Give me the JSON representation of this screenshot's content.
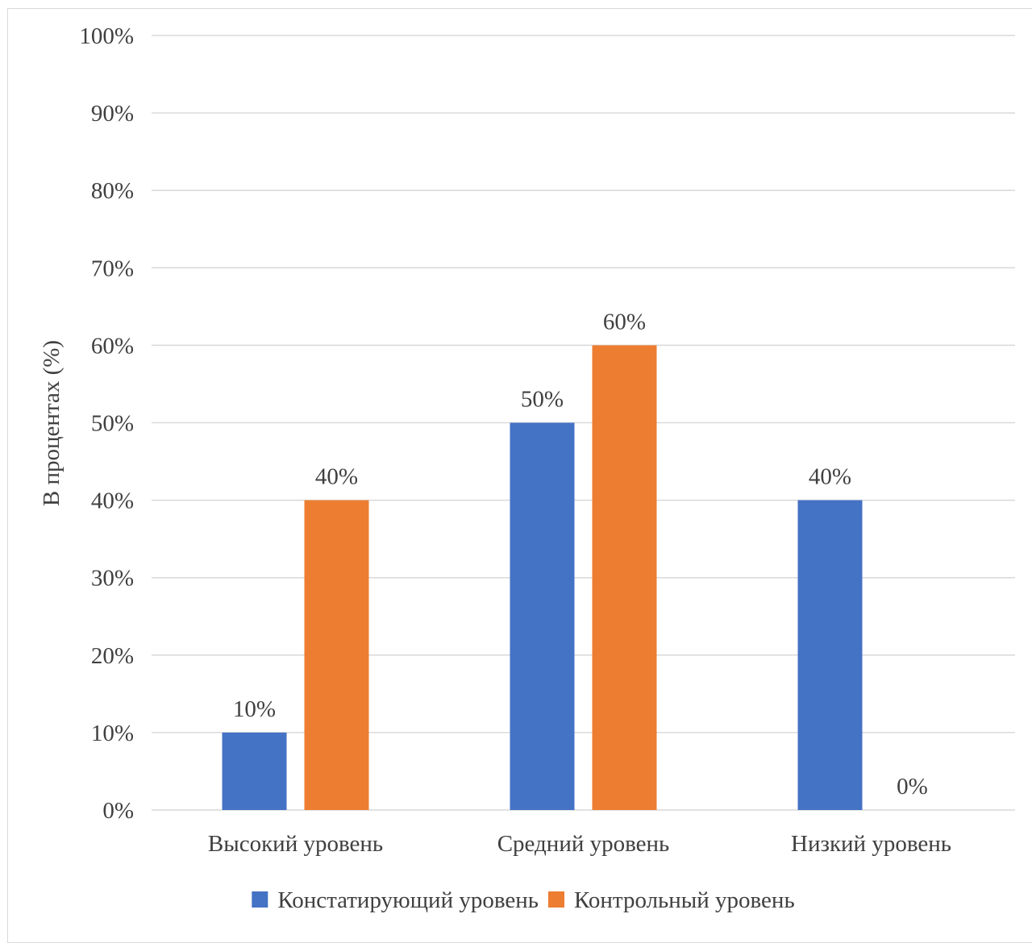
{
  "chart_data": {
    "type": "bar",
    "ylabel": "В процентах (%)",
    "ylim": [
      0,
      100
    ],
    "yticks": [
      "0%",
      "10%",
      "20%",
      "30%",
      "40%",
      "50%",
      "60%",
      "70%",
      "80%",
      "90%",
      "100%"
    ],
    "grid": true,
    "legend_position": "bottom",
    "categories": [
      "Высокий уровень",
      "Средний уровень",
      "Низкий уровень"
    ],
    "series": [
      {
        "name": "Констатирующий уровень",
        "color": "#4472c4",
        "values": [
          10,
          50,
          40
        ],
        "labels": [
          "10%",
          "50%",
          "40%"
        ]
      },
      {
        "name": "Контрольный уровень",
        "color": "#ed7d31",
        "values": [
          40,
          60,
          0
        ],
        "labels": [
          "40%",
          "60%",
          "0%"
        ]
      }
    ]
  }
}
